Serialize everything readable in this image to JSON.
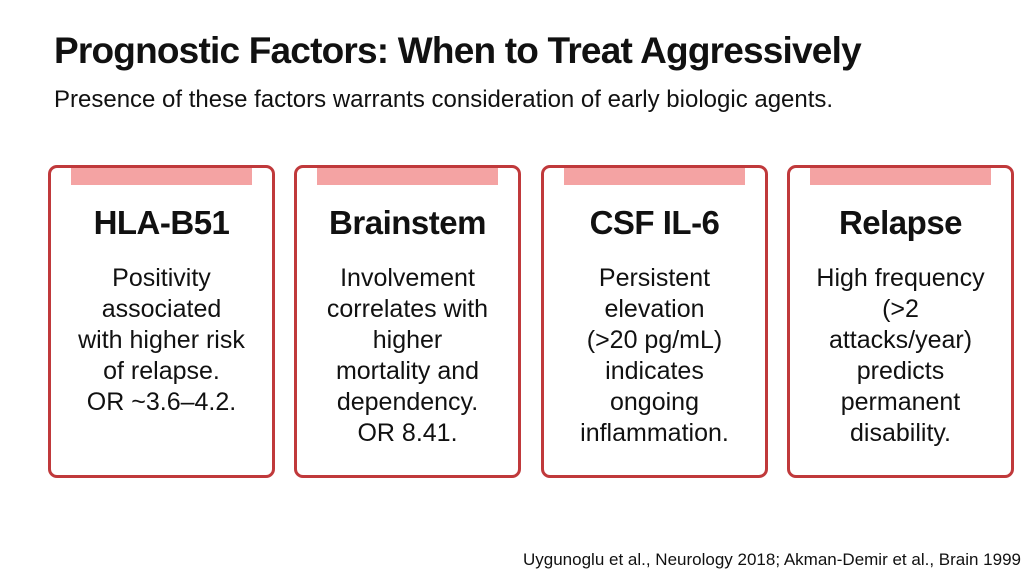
{
  "header": {
    "title": "Prognostic Factors: When to Treat Aggressively",
    "subtitle": "Presence of these factors warrants consideration of early biologic agents."
  },
  "cards": [
    {
      "title": "HLA-B51",
      "lines": [
        "Positivity",
        "associated",
        "with higher risk",
        "of relapse.",
        "OR ~3.6–4.2."
      ]
    },
    {
      "title": "Brainstem",
      "lines": [
        "Involvement",
        "correlates with",
        "higher",
        "mortality and",
        "dependency.",
        "OR 8.41."
      ]
    },
    {
      "title": "CSF IL-6",
      "lines": [
        "Persistent",
        "elevation",
        "(>20 pg/mL)",
        "indicates",
        "ongoing",
        "inflammation."
      ]
    },
    {
      "title": "Relapse",
      "lines": [
        "High frequency",
        "(>2",
        "attacks/year)",
        "predicts",
        "permanent",
        "disability."
      ]
    }
  ],
  "footer": {
    "citation": "Uygunoglu et al., Neurology 2018; Akman-Demir et al., Brain 1999"
  }
}
